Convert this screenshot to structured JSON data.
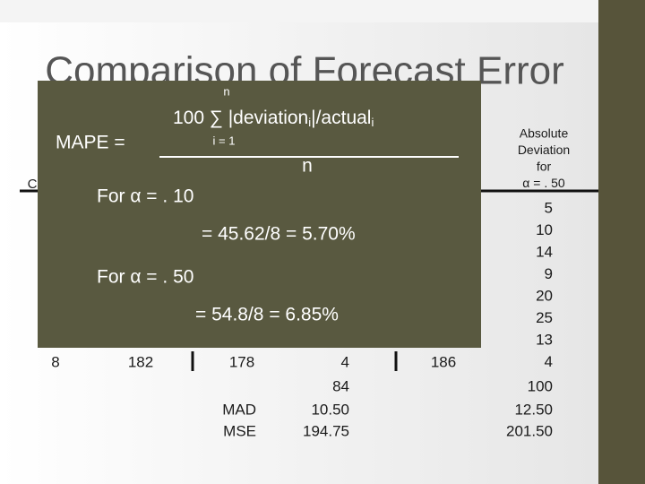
{
  "title": "Comparison of Forecast Error",
  "cut_header": "C",
  "formula": {
    "lhs": "MAPE =",
    "upper": "n",
    "multiplier": "100",
    "sigma": "∑",
    "term1": "|deviation",
    "sub1": "i",
    "term2": "|/actual",
    "sub2": "i",
    "lower": "i = 1",
    "denominator": "n"
  },
  "results": [
    {
      "label": "For α = . 10",
      "value": "= 45.62/8 = 5.70%"
    },
    {
      "label": "For α = . 50",
      "value": "= 54.8/8 = 6.85%"
    }
  ],
  "column": {
    "header": [
      "Absolute",
      "Deviation",
      "for",
      "α = . 50"
    ],
    "values": [
      "5",
      "10",
      "14",
      "9",
      "20",
      "25",
      "13",
      "4"
    ],
    "total": "100",
    "mad": "12.50",
    "mse": "201.50"
  },
  "table": {
    "last_row": [
      "8",
      "182",
      "178",
      "4",
      "186"
    ],
    "total": "84",
    "mad_label": "MAD",
    "mad": "10.50",
    "mse_label": "MSE",
    "mse": "194.75"
  }
}
